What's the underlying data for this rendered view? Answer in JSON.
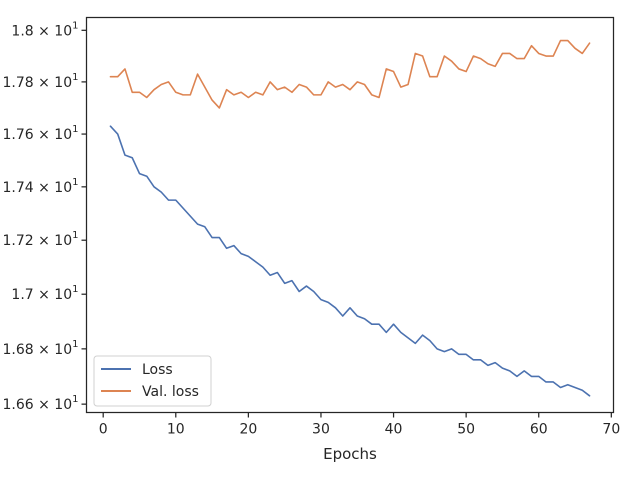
{
  "chart_data": {
    "type": "line",
    "xlabel": "Epochs",
    "ylabel": "",
    "yscale": "log",
    "xlim": [
      -2.3,
      70.3
    ],
    "ylim": [
      16.57,
      18.05
    ],
    "grid": false,
    "legend_position": "lower-left",
    "x_ticks": [
      0,
      10,
      20,
      30,
      40,
      50,
      60,
      70
    ],
    "y_ticks": [
      {
        "value": 16.6,
        "mant": "1.66",
        "exp": "1"
      },
      {
        "value": 16.8,
        "mant": "1.68",
        "exp": "1"
      },
      {
        "value": 17.0,
        "mant": "1.7",
        "exp": "1"
      },
      {
        "value": 17.2,
        "mant": "1.72",
        "exp": "1"
      },
      {
        "value": 17.4,
        "mant": "1.74",
        "exp": "1"
      },
      {
        "value": 17.6,
        "mant": "1.76",
        "exp": "1"
      },
      {
        "value": 17.8,
        "mant": "1.78",
        "exp": "1"
      },
      {
        "value": 18.0,
        "mant": "1.8",
        "exp": "1"
      }
    ],
    "x": [
      1,
      2,
      3,
      4,
      5,
      6,
      7,
      8,
      9,
      10,
      11,
      12,
      13,
      14,
      15,
      16,
      17,
      18,
      19,
      20,
      21,
      22,
      23,
      24,
      25,
      26,
      27,
      28,
      29,
      30,
      31,
      32,
      33,
      34,
      35,
      36,
      37,
      38,
      39,
      40,
      41,
      42,
      43,
      44,
      45,
      46,
      47,
      48,
      49,
      50,
      51,
      52,
      53,
      54,
      55,
      56,
      57,
      58,
      59,
      60,
      61,
      62,
      63,
      64,
      65,
      66,
      67
    ],
    "series": [
      {
        "name": "Loss",
        "color": "#4c72b0",
        "values": [
          17.63,
          17.6,
          17.52,
          17.51,
          17.45,
          17.44,
          17.4,
          17.38,
          17.35,
          17.35,
          17.32,
          17.29,
          17.26,
          17.25,
          17.21,
          17.21,
          17.17,
          17.18,
          17.15,
          17.14,
          17.12,
          17.1,
          17.07,
          17.08,
          17.04,
          17.05,
          17.01,
          17.03,
          17.01,
          16.98,
          16.97,
          16.95,
          16.92,
          16.95,
          16.92,
          16.91,
          16.89,
          16.89,
          16.86,
          16.89,
          16.86,
          16.84,
          16.82,
          16.85,
          16.83,
          16.8,
          16.79,
          16.8,
          16.78,
          16.78,
          16.76,
          16.76,
          16.74,
          16.75,
          16.73,
          16.72,
          16.7,
          16.72,
          16.7,
          16.7,
          16.68,
          16.68,
          16.66,
          16.67,
          16.66,
          16.65,
          16.63
        ]
      },
      {
        "name": "Val. loss",
        "color": "#dd8452",
        "values": [
          17.82,
          17.82,
          17.85,
          17.76,
          17.76,
          17.74,
          17.77,
          17.79,
          17.8,
          17.76,
          17.75,
          17.75,
          17.83,
          17.78,
          17.73,
          17.7,
          17.77,
          17.75,
          17.76,
          17.74,
          17.76,
          17.75,
          17.8,
          17.77,
          17.78,
          17.76,
          17.79,
          17.78,
          17.75,
          17.75,
          17.8,
          17.78,
          17.79,
          17.77,
          17.8,
          17.79,
          17.75,
          17.74,
          17.85,
          17.84,
          17.78,
          17.79,
          17.91,
          17.9,
          17.82,
          17.82,
          17.9,
          17.88,
          17.85,
          17.84,
          17.9,
          17.89,
          17.87,
          17.86,
          17.91,
          17.91,
          17.89,
          17.89,
          17.94,
          17.91,
          17.9,
          17.9,
          17.96,
          17.96,
          17.93,
          17.91,
          17.95
        ]
      }
    ]
  }
}
